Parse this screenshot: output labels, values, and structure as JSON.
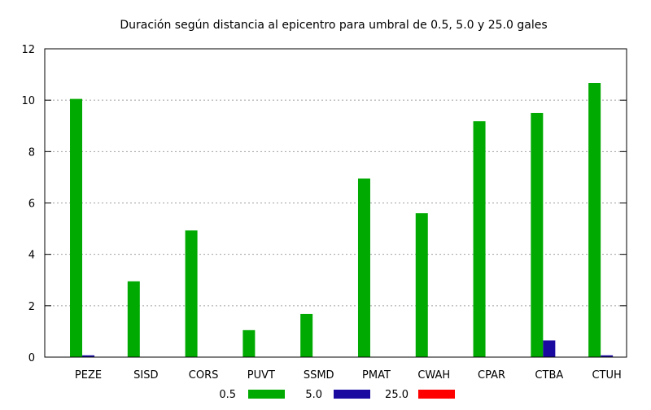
{
  "chart_data": {
    "type": "bar",
    "title": "Duración según distancia al epicentro para umbral de 0.5, 5.0 y 25.0 gales",
    "xlabel": "",
    "ylabel": "",
    "ylim": [
      0,
      12
    ],
    "yticks": [
      "0",
      "2",
      "4",
      "6",
      "8",
      "10",
      "12"
    ],
    "grid": true,
    "legend_position": "bottom-center",
    "categories": [
      "PEZE",
      "SISD",
      "CORS",
      "PUVT",
      "SSMD",
      "PMAT",
      "CWAH",
      "CPAR",
      "CTBA",
      "CTUH"
    ],
    "series": [
      {
        "name": "0.5",
        "color": "#00aa00",
        "values": [
          10.05,
          2.95,
          4.93,
          1.05,
          1.68,
          6.95,
          5.6,
          9.18,
          9.5,
          10.67
        ]
      },
      {
        "name": "5.0",
        "color": "#1a0aa0",
        "values": [
          0.07,
          0,
          0,
          0,
          0,
          0,
          0,
          0,
          0.65,
          0.07
        ]
      },
      {
        "name": "25.0",
        "color": "#ff0000",
        "values": [
          0,
          0,
          0,
          0,
          0,
          0,
          0,
          0,
          0,
          0
        ]
      }
    ]
  }
}
